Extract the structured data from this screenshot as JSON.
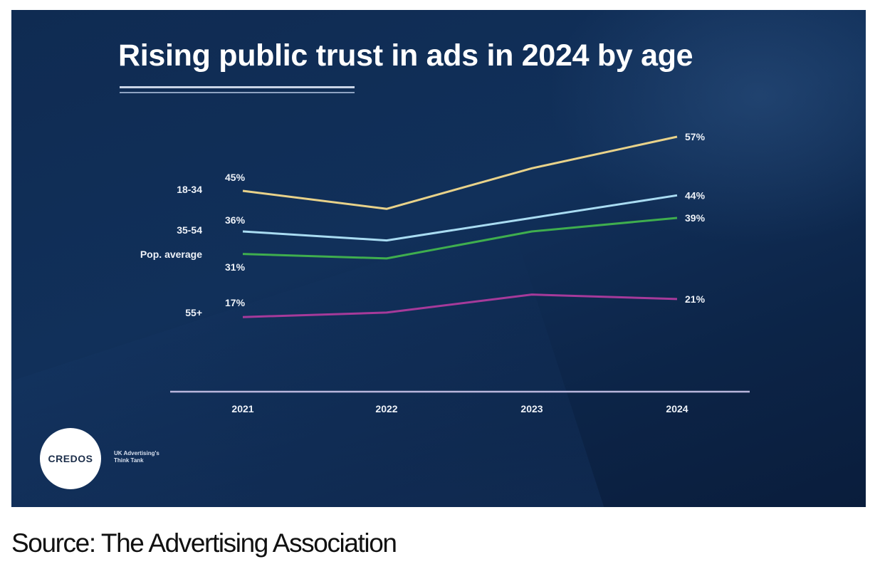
{
  "chart_data": {
    "type": "line",
    "title": "Rising public trust in ads in 2024 by age",
    "xlabel": "",
    "ylabel": "",
    "categories": [
      "2021",
      "2022",
      "2023",
      "2024"
    ],
    "ylim": [
      10,
      62
    ],
    "grid": false,
    "legend": "left (labels beside series start)",
    "series": [
      {
        "name": "18-34",
        "color": "#e8d28a",
        "values": [
          45,
          41,
          50,
          57
        ],
        "labels": {
          "0": "45%",
          "3": "57%"
        }
      },
      {
        "name": "35-54",
        "color": "#a9dcf2",
        "values": [
          36,
          34,
          39,
          44
        ],
        "labels": {
          "0": "36%",
          "3": "44%"
        }
      },
      {
        "name": "Pop. average",
        "color": "#3fae4e",
        "values": [
          31,
          30,
          36,
          39
        ],
        "labels": {
          "0": "31%",
          "3": "39%"
        }
      },
      {
        "name": "55+",
        "color": "#a63a9a",
        "values": [
          17,
          18,
          22,
          21
        ],
        "labels": {
          "0": "17%",
          "3": "21%"
        }
      }
    ],
    "axis_color": "#b9b6dc"
  },
  "slide": {
    "title": "Rising public trust in ads in 2024 by age",
    "logo_text": "CREDOS",
    "tagline_line1": "UK Advertising's",
    "tagline_line2": "Think Tank"
  },
  "caption": "Source: The Advertising Association"
}
